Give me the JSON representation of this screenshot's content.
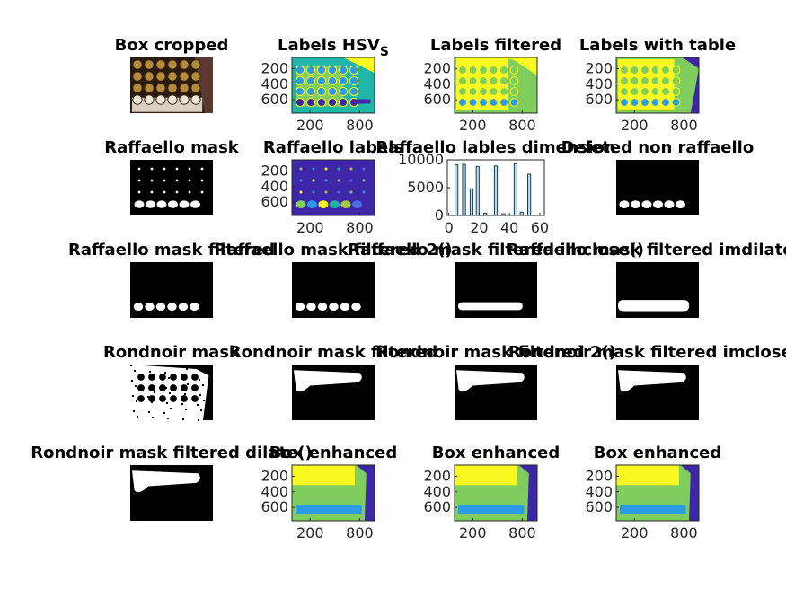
{
  "figure": {
    "background": "#ffffff",
    "colors": {
      "parula_dark": "#3e26a8",
      "parula_blue": "#2b9be8",
      "parula_teal": "#1fb5a8",
      "parula_green": "#7fcd5c",
      "parula_yellow": "#f9f820",
      "black": "#000000",
      "white": "#ffffff",
      "hist_bar": "#b8dcef",
      "hist_edge": "#1a3c55"
    }
  },
  "chart_data": [
    {
      "id": "p1",
      "type": "image",
      "title": "Box cropped",
      "image": "photo",
      "axes": false
    },
    {
      "id": "p2",
      "type": "image",
      "title": "Labels HSV",
      "title_subscript": "S",
      "image": "labels_hsv",
      "axes": true,
      "yticks": [
        "200",
        "400",
        "600"
      ],
      "xticks": [
        "200",
        "800"
      ]
    },
    {
      "id": "p3",
      "type": "image",
      "title": "Labels filtered",
      "image": "labels_filtered",
      "axes": true,
      "yticks": [
        "200",
        "400",
        "600"
      ],
      "xticks": [
        "200",
        "800"
      ]
    },
    {
      "id": "p4",
      "type": "image",
      "title": "Labels with table",
      "image": "labels_table",
      "axes": true,
      "yticks": [
        "200",
        "400",
        "600"
      ],
      "xticks": [
        "200",
        "800"
      ]
    },
    {
      "id": "p5",
      "type": "image",
      "title": "Raffaello mask",
      "image": "mask_dots",
      "axes": false
    },
    {
      "id": "p6",
      "type": "image",
      "title": "Raffaello labels",
      "image": "raff_labels",
      "axes": true,
      "yticks": [
        "200",
        "400",
        "600"
      ],
      "xticks": [
        "200",
        "800"
      ]
    },
    {
      "id": "p7",
      "type": "bar",
      "title": "Raffaello lables dimension",
      "xticks": [
        "0",
        "20",
        "40",
        "60"
      ],
      "yticks": [
        "0",
        "5000",
        "10000"
      ],
      "xlim": [
        -1,
        63
      ],
      "ylim": [
        0,
        10000
      ],
      "bars": [
        {
          "x": 5,
          "y": 9100
        },
        {
          "x": 10,
          "y": 9200
        },
        {
          "x": 15,
          "y": 4800
        },
        {
          "x": 19,
          "y": 8800
        },
        {
          "x": 24,
          "y": 400
        },
        {
          "x": 31,
          "y": 8900
        },
        {
          "x": 36,
          "y": 300
        },
        {
          "x": 44,
          "y": 9300
        },
        {
          "x": 48,
          "y": 600
        },
        {
          "x": 53,
          "y": 7400
        }
      ]
    },
    {
      "id": "p8",
      "type": "image",
      "title": "Deleted non raffaello",
      "image": "mask_row",
      "axes": false
    },
    {
      "id": "p9",
      "type": "image",
      "title": "Raffaello mask filtered",
      "image": "mask_row_clean",
      "axes": false
    },
    {
      "id": "p10",
      "type": "image",
      "title": "Raffaello mask filtered 2()",
      "image": "mask_row_clean",
      "axes": false
    },
    {
      "id": "p11",
      "type": "image",
      "title": "Raffaello mask filtered imclose()",
      "image": "mask_bar",
      "axes": false
    },
    {
      "id": "p12",
      "type": "image",
      "title": "Raffaello mask filtered imdilate()",
      "image": "mask_bar_thick",
      "axes": false
    },
    {
      "id": "p13",
      "type": "image",
      "title": "Rondnoir mask",
      "image": "rond_mask",
      "axes": false
    },
    {
      "id": "p14",
      "type": "image",
      "title": "Rondnoir mask filtered",
      "image": "rond_blob",
      "axes": false
    },
    {
      "id": "p15",
      "type": "image",
      "title": "Rondnoir mask filtered 2()",
      "image": "rond_blob",
      "axes": false
    },
    {
      "id": "p16",
      "type": "image",
      "title": "Rondnoir mask filtered imclose()",
      "image": "rond_blob",
      "axes": false
    },
    {
      "id": "p17",
      "type": "image",
      "title": "Rondnoir mask filtered dilate()",
      "image": "rond_blob",
      "axes": false
    },
    {
      "id": "p18",
      "type": "image",
      "title": "Box enhanced",
      "image": "box_enhanced",
      "axes": true,
      "yticks": [
        "200",
        "400",
        "600"
      ],
      "xticks": [
        "200",
        "800"
      ]
    },
    {
      "id": "p19",
      "type": "image",
      "title": "Box enhanced",
      "image": "box_enhanced",
      "axes": true,
      "yticks": [
        "200",
        "400",
        "600"
      ],
      "xticks": [
        "200",
        "800"
      ]
    },
    {
      "id": "p20",
      "type": "image",
      "title": "Box enhanced",
      "image": "box_enhanced",
      "axes": true,
      "yticks": [
        "200",
        "400",
        "600"
      ],
      "xticks": [
        "200",
        "800"
      ]
    }
  ]
}
